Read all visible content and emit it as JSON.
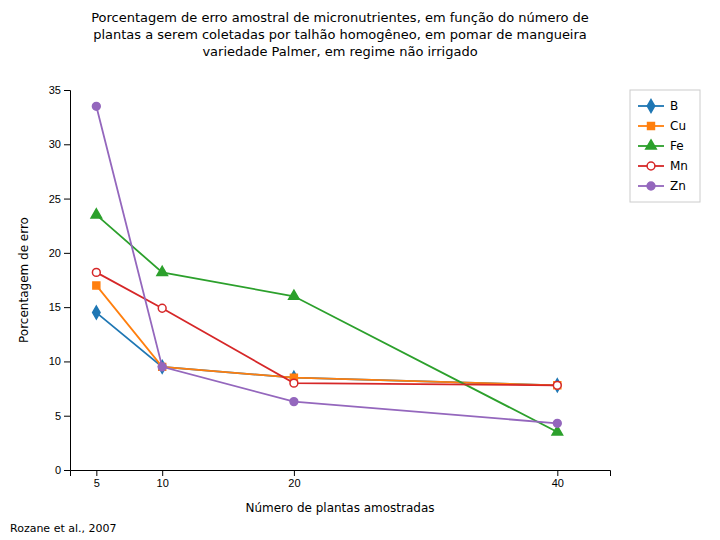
{
  "chart_data": {
    "type": "line",
    "title": "Porcentagem de erro amostral de micronutrientes, em função do número de\nplantas a serem coletadas por talhão homogêneo, em pomar de mangueira\nvariedade Palmer, em regime não irrigado",
    "xlabel": "Número de plantas amostradas",
    "ylabel": "Porcentagem de erro",
    "footnote": "Rozane et al., 2007",
    "x": [
      5,
      10,
      20,
      40
    ],
    "series": [
      {
        "name": "B",
        "marker": "diamond",
        "values": [
          14.5,
          9.5,
          8.5,
          7.8
        ]
      },
      {
        "name": "Cu",
        "marker": "square",
        "values": [
          17.0,
          9.5,
          8.5,
          7.8
        ]
      },
      {
        "name": "Fe",
        "marker": "triangle",
        "values": [
          23.5,
          18.2,
          16.0,
          3.5
        ]
      },
      {
        "name": "Mn",
        "marker": "circle-open",
        "values": [
          18.2,
          14.9,
          8.0,
          7.8
        ]
      },
      {
        "name": "Zn",
        "marker": "circle",
        "values": [
          33.5,
          9.5,
          6.3,
          4.3
        ]
      }
    ],
    "xlim": [
      3,
      44
    ],
    "xticks": [
      5,
      10,
      20,
      40
    ],
    "ylim": [
      0,
      35
    ],
    "yticks": [
      0,
      5,
      10,
      15,
      20,
      25,
      30,
      35
    ],
    "grid": false,
    "legend": "right"
  }
}
